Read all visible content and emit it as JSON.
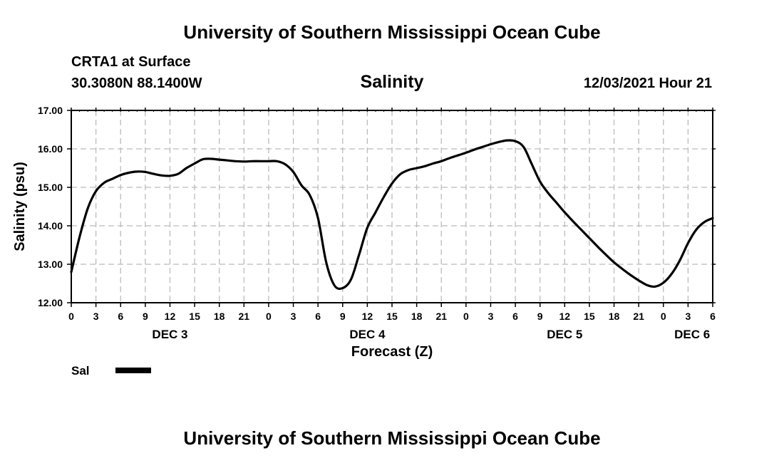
{
  "header": {
    "title_top": "University of Southern Mississippi Ocean Cube",
    "station": "CRTA1 at Surface",
    "coords": "30.3080N  88.1400W",
    "variable": "Salinity",
    "datetime": "12/03/2021 Hour 21"
  },
  "footer": {
    "title_bottom": "University of Southern Mississippi Ocean Cube"
  },
  "legend": {
    "label": "Sal",
    "line_color": "#000000"
  },
  "chart_data": {
    "type": "line",
    "title": "Salinity",
    "xlabel": "Forecast (Z)",
    "ylabel": "Salinity (psu)",
    "xlim": [
      0,
      78
    ],
    "ylim": [
      12.0,
      17.0
    ],
    "grid": true,
    "y_ticks": [
      12.0,
      13.0,
      14.0,
      15.0,
      16.0,
      17.0
    ],
    "y_tick_labels": [
      "12.00",
      "13.00",
      "14.00",
      "15.00",
      "16.00",
      "17.00"
    ],
    "x_ticks": [
      0,
      3,
      6,
      9,
      12,
      15,
      18,
      21,
      24,
      27,
      30,
      33,
      36,
      39,
      42,
      45,
      48,
      51,
      54,
      57,
      60,
      63,
      66,
      69,
      72,
      75,
      78
    ],
    "x_tick_labels": [
      "0",
      "3",
      "6",
      "9",
      "12",
      "15",
      "18",
      "21",
      "0",
      "3",
      "6",
      "9",
      "12",
      "15",
      "18",
      "21",
      "0",
      "3",
      "6",
      "9",
      "12",
      "15",
      "18",
      "21",
      "0",
      "3",
      "6"
    ],
    "day_labels": [
      {
        "label": "DEC 3",
        "x": 12
      },
      {
        "label": "DEC 4",
        "x": 36
      },
      {
        "label": "DEC 5",
        "x": 60
      },
      {
        "label": "DEC 6",
        "x": 75.5
      }
    ],
    "series": [
      {
        "name": "Sal",
        "color": "#000000",
        "x": [
          0,
          1,
          2,
          3,
          4,
          5,
          6,
          7,
          8,
          9,
          10,
          11,
          12,
          13,
          14,
          15,
          16,
          17,
          18,
          19,
          20,
          21,
          22,
          23,
          24,
          25,
          26,
          27,
          28,
          29,
          30,
          31,
          32,
          33,
          34,
          35,
          36,
          37,
          38,
          39,
          40,
          41,
          42,
          43,
          44,
          45,
          46,
          47,
          48,
          49,
          50,
          51,
          52,
          53,
          54,
          55,
          56,
          57,
          58,
          59,
          60,
          61,
          62,
          63,
          64,
          65,
          66,
          67,
          68,
          69,
          70,
          71,
          72,
          73,
          74,
          75,
          76,
          77,
          78
        ],
        "values": [
          12.8,
          13.7,
          14.45,
          14.9,
          15.12,
          15.22,
          15.32,
          15.38,
          15.41,
          15.4,
          15.35,
          15.31,
          15.3,
          15.35,
          15.5,
          15.62,
          15.73,
          15.74,
          15.72,
          15.7,
          15.68,
          15.67,
          15.68,
          15.68,
          15.68,
          15.68,
          15.6,
          15.4,
          15.05,
          14.8,
          14.2,
          13.05,
          12.45,
          12.38,
          12.6,
          13.25,
          13.95,
          14.35,
          14.75,
          15.1,
          15.34,
          15.45,
          15.5,
          15.55,
          15.62,
          15.68,
          15.76,
          15.83,
          15.9,
          15.98,
          16.05,
          16.12,
          16.18,
          16.22,
          16.2,
          16.05,
          15.6,
          15.15,
          14.85,
          14.6,
          14.35,
          14.12,
          13.9,
          13.68,
          13.46,
          13.25,
          13.05,
          12.88,
          12.72,
          12.58,
          12.46,
          12.42,
          12.52,
          12.75,
          13.1,
          13.55,
          13.9,
          14.1,
          14.2
        ]
      }
    ]
  }
}
